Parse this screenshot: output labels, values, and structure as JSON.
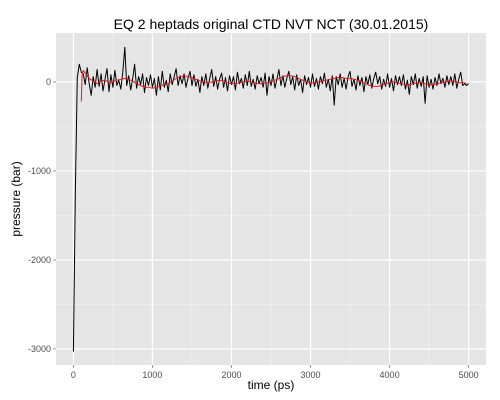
{
  "chart_data": {
    "type": "line",
    "title": "EQ 2 heptads original CTD NVT NCT (30.01.2015)",
    "xlabel": "time (ps)",
    "ylabel": "pressure (bar)",
    "xlim": [
      -220,
      5220
    ],
    "ylim": [
      -3180,
      550
    ],
    "x_ticks": [
      0,
      1000,
      2000,
      3000,
      4000,
      5000
    ],
    "y_ticks": [
      -3000,
      -2000,
      -1000,
      0
    ],
    "x_tick_labels": [
      "0",
      "1000",
      "2000",
      "3000",
      "4000",
      "5000"
    ],
    "y_tick_labels": [
      "-3000",
      "-2000",
      "-1000",
      "0"
    ],
    "grid": true,
    "colors": {
      "panel": "#e5e5e5",
      "grid_major": "#ffffff",
      "grid_minor": "#f2f2f2",
      "raw": "#000000",
      "smooth": "#e41a1c"
    },
    "series": [
      {
        "points": [
          [
            0,
            -3030
          ],
          [
            25,
            -1200
          ],
          [
            50,
            50
          ],
          [
            75,
            200
          ],
          [
            100,
            110
          ],
          [
            125,
            90
          ],
          [
            150,
            -30
          ],
          [
            175,
            160
          ],
          [
            200,
            -20
          ],
          [
            225,
            -150
          ],
          [
            250,
            60
          ],
          [
            275,
            -60
          ],
          [
            300,
            140
          ],
          [
            325,
            -50
          ],
          [
            350,
            90
          ],
          [
            375,
            -100
          ],
          [
            400,
            30
          ],
          [
            425,
            150
          ],
          [
            450,
            -110
          ],
          [
            475,
            80
          ],
          [
            500,
            -60
          ],
          [
            525,
            130
          ],
          [
            550,
            -40
          ],
          [
            575,
            20
          ],
          [
            600,
            -80
          ],
          [
            625,
            110
          ],
          [
            650,
            390
          ],
          [
            675,
            -40
          ],
          [
            700,
            70
          ],
          [
            725,
            -90
          ],
          [
            750,
            40
          ],
          [
            775,
            200
          ],
          [
            800,
            -70
          ],
          [
            825,
            60
          ],
          [
            850,
            -30
          ],
          [
            875,
            90
          ],
          [
            900,
            -120
          ],
          [
            925,
            50
          ],
          [
            950,
            -40
          ],
          [
            975,
            80
          ],
          [
            1000,
            -60
          ],
          [
            1025,
            40
          ],
          [
            1050,
            -150
          ],
          [
            1075,
            60
          ],
          [
            1100,
            -90
          ],
          [
            1125,
            120
          ],
          [
            1150,
            -60
          ],
          [
            1175,
            20
          ],
          [
            1200,
            -110
          ],
          [
            1225,
            90
          ],
          [
            1250,
            -30
          ],
          [
            1275,
            60
          ],
          [
            1300,
            150
          ],
          [
            1325,
            -40
          ],
          [
            1350,
            70
          ],
          [
            1375,
            -20
          ],
          [
            1400,
            90
          ],
          [
            1425,
            -60
          ],
          [
            1450,
            40
          ],
          [
            1475,
            120
          ],
          [
            1500,
            -40
          ],
          [
            1525,
            80
          ],
          [
            1550,
            -50
          ],
          [
            1575,
            30
          ],
          [
            1600,
            -120
          ],
          [
            1625,
            60
          ],
          [
            1650,
            -40
          ],
          [
            1675,
            90
          ],
          [
            1700,
            -70
          ],
          [
            1725,
            40
          ],
          [
            1750,
            140
          ],
          [
            1775,
            -50
          ],
          [
            1800,
            60
          ],
          [
            1825,
            -80
          ],
          [
            1850,
            30
          ],
          [
            1875,
            100
          ],
          [
            1900,
            -60
          ],
          [
            1925,
            50
          ],
          [
            1950,
            -100
          ],
          [
            1975,
            70
          ],
          [
            2000,
            -30
          ],
          [
            2025,
            60
          ],
          [
            2050,
            -90
          ],
          [
            2075,
            110
          ],
          [
            2100,
            -20
          ],
          [
            2125,
            40
          ],
          [
            2150,
            -70
          ],
          [
            2175,
            80
          ],
          [
            2200,
            -40
          ],
          [
            2225,
            120
          ],
          [
            2250,
            -50
          ],
          [
            2275,
            30
          ],
          [
            2300,
            -80
          ],
          [
            2325,
            70
          ],
          [
            2350,
            -20
          ],
          [
            2375,
            50
          ],
          [
            2400,
            -60
          ],
          [
            2425,
            100
          ],
          [
            2450,
            -150
          ],
          [
            2475,
            60
          ],
          [
            2500,
            -40
          ],
          [
            2525,
            90
          ],
          [
            2550,
            -70
          ],
          [
            2575,
            30
          ],
          [
            2600,
            140
          ],
          [
            2625,
            -40
          ],
          [
            2650,
            70
          ],
          [
            2675,
            -60
          ],
          [
            2700,
            40
          ],
          [
            2725,
            120
          ],
          [
            2750,
            -30
          ],
          [
            2775,
            60
          ],
          [
            2800,
            -90
          ],
          [
            2825,
            80
          ],
          [
            2850,
            -40
          ],
          [
            2875,
            30
          ],
          [
            2900,
            -120
          ],
          [
            2925,
            70
          ],
          [
            2950,
            -30
          ],
          [
            2975,
            50
          ],
          [
            3000,
            -60
          ],
          [
            3025,
            90
          ],
          [
            3050,
            -50
          ],
          [
            3075,
            40
          ],
          [
            3100,
            -80
          ],
          [
            3125,
            60
          ],
          [
            3150,
            -20
          ],
          [
            3175,
            100
          ],
          [
            3200,
            -60
          ],
          [
            3225,
            30
          ],
          [
            3250,
            -100
          ],
          [
            3275,
            70
          ],
          [
            3300,
            -260
          ],
          [
            3325,
            60
          ],
          [
            3350,
            -30
          ],
          [
            3375,
            90
          ],
          [
            3400,
            -60
          ],
          [
            3425,
            40
          ],
          [
            3450,
            -80
          ],
          [
            3475,
            60
          ],
          [
            3500,
            120
          ],
          [
            3525,
            -50
          ],
          [
            3550,
            30
          ],
          [
            3575,
            -90
          ],
          [
            3600,
            70
          ],
          [
            3625,
            -40
          ],
          [
            3650,
            50
          ],
          [
            3675,
            -110
          ],
          [
            3700,
            60
          ],
          [
            3725,
            -30
          ],
          [
            3750,
            80
          ],
          [
            3775,
            -70
          ],
          [
            3800,
            40
          ],
          [
            3825,
            110
          ],
          [
            3850,
            -20
          ],
          [
            3875,
            60
          ],
          [
            3900,
            -80
          ],
          [
            3925,
            30
          ],
          [
            3950,
            -50
          ],
          [
            3975,
            90
          ],
          [
            4000,
            -60
          ],
          [
            4025,
            40
          ],
          [
            4050,
            -100
          ],
          [
            4075,
            70
          ],
          [
            4100,
            -30
          ],
          [
            4125,
            60
          ],
          [
            4150,
            -40
          ],
          [
            4175,
            80
          ],
          [
            4200,
            -80
          ],
          [
            4225,
            20
          ],
          [
            4250,
            -140
          ],
          [
            4275,
            60
          ],
          [
            4300,
            -30
          ],
          [
            4325,
            90
          ],
          [
            4350,
            -70
          ],
          [
            4375,
            40
          ],
          [
            4400,
            -50
          ],
          [
            4425,
            60
          ],
          [
            4450,
            -240
          ],
          [
            4475,
            70
          ],
          [
            4500,
            -60
          ],
          [
            4525,
            30
          ],
          [
            4550,
            -80
          ],
          [
            4575,
            50
          ],
          [
            4600,
            -40
          ],
          [
            4625,
            90
          ],
          [
            4650,
            -20
          ],
          [
            4675,
            40
          ],
          [
            4700,
            -60
          ],
          [
            4725,
            70
          ],
          [
            4750,
            -30
          ],
          [
            4775,
            60
          ],
          [
            4800,
            -40
          ],
          [
            4825,
            90
          ],
          [
            4850,
            -70
          ],
          [
            4875,
            30
          ],
          [
            4900,
            110
          ],
          [
            4925,
            -40
          ],
          [
            4950,
            -20
          ],
          [
            4975,
            -40
          ],
          [
            5000,
            -20
          ]
        ]
      },
      {
        "points": [
          [
            100,
            -220
          ],
          [
            110,
            80
          ],
          [
            125,
            130
          ],
          [
            150,
            100
          ],
          [
            175,
            70
          ],
          [
            200,
            40
          ],
          [
            250,
            10
          ],
          [
            300,
            -20
          ],
          [
            350,
            10
          ],
          [
            400,
            20
          ],
          [
            450,
            -10
          ],
          [
            500,
            0
          ],
          [
            550,
            20
          ],
          [
            600,
            30
          ],
          [
            650,
            40
          ],
          [
            700,
            30
          ],
          [
            750,
            10
          ],
          [
            800,
            -20
          ],
          [
            850,
            -40
          ],
          [
            900,
            -60
          ],
          [
            950,
            -60
          ],
          [
            1000,
            -70
          ],
          [
            1050,
            -60
          ],
          [
            1100,
            -40
          ],
          [
            1150,
            -30
          ],
          [
            1200,
            -20
          ],
          [
            1250,
            10
          ],
          [
            1300,
            40
          ],
          [
            1350,
            60
          ],
          [
            1400,
            70
          ],
          [
            1450,
            60
          ],
          [
            1500,
            50
          ],
          [
            1550,
            30
          ],
          [
            1600,
            10
          ],
          [
            1650,
            0
          ],
          [
            1700,
            -10
          ],
          [
            1750,
            0
          ],
          [
            1800,
            10
          ],
          [
            1850,
            20
          ],
          [
            1900,
            10
          ],
          [
            1950,
            -10
          ],
          [
            2000,
            -20
          ],
          [
            2050,
            -20
          ],
          [
            2100,
            -10
          ],
          [
            2150,
            0
          ],
          [
            2200,
            10
          ],
          [
            2250,
            0
          ],
          [
            2300,
            -10
          ],
          [
            2350,
            -20
          ],
          [
            2400,
            -20
          ],
          [
            2450,
            -10
          ],
          [
            2500,
            0
          ],
          [
            2550,
            20
          ],
          [
            2600,
            40
          ],
          [
            2650,
            60
          ],
          [
            2700,
            70
          ],
          [
            2750,
            70
          ],
          [
            2800,
            60
          ],
          [
            2850,
            40
          ],
          [
            2900,
            20
          ],
          [
            2950,
            0
          ],
          [
            3000,
            -10
          ],
          [
            3050,
            -10
          ],
          [
            3100,
            0
          ],
          [
            3150,
            10
          ],
          [
            3200,
            20
          ],
          [
            3250,
            30
          ],
          [
            3300,
            40
          ],
          [
            3350,
            50
          ],
          [
            3400,
            50
          ],
          [
            3450,
            40
          ],
          [
            3500,
            40
          ],
          [
            3550,
            30
          ],
          [
            3600,
            20
          ],
          [
            3650,
            0
          ],
          [
            3700,
            -20
          ],
          [
            3750,
            -40
          ],
          [
            3800,
            -50
          ],
          [
            3850,
            -50
          ],
          [
            3900,
            -40
          ],
          [
            3950,
            -20
          ],
          [
            4000,
            -10
          ],
          [
            4050,
            0
          ],
          [
            4100,
            -10
          ],
          [
            4150,
            -20
          ],
          [
            4200,
            -30
          ],
          [
            4250,
            -30
          ],
          [
            4300,
            -20
          ],
          [
            4350,
            -10
          ],
          [
            4400,
            -10
          ],
          [
            4450,
            -20
          ],
          [
            4500,
            -30
          ],
          [
            4550,
            -30
          ],
          [
            4600,
            -20
          ],
          [
            4650,
            -10
          ],
          [
            4700,
            0
          ],
          [
            4750,
            10
          ],
          [
            4800,
            10
          ],
          [
            4850,
            0
          ],
          [
            4900,
            -10
          ],
          [
            4950,
            -10
          ],
          [
            4975,
            -20
          ]
        ]
      }
    ]
  }
}
